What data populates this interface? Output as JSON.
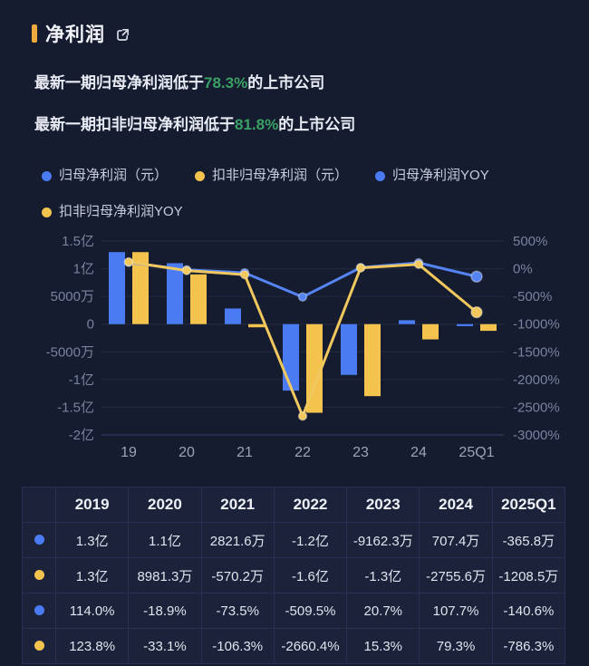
{
  "colors": {
    "background": "#151c2f",
    "blue": "#4b7bf2",
    "yellow": "#f3c34e",
    "line_blue": "#5584f2",
    "line_yellow": "#f0c85e",
    "green_highlight": "#3aa065",
    "title_marker": "#efa93e",
    "axis_text": "#78829e",
    "x_axis_text": "#9aa3ba",
    "gridline": "#222a46",
    "gridline_bottom": "#39426a"
  },
  "header": {
    "title": "净利润"
  },
  "summary": [
    {
      "prefix": "最新一期归母净利润低于",
      "highlight": "78.3%",
      "suffix": "的上市公司"
    },
    {
      "prefix": "最新一期扣非归母净利润低于",
      "highlight": "81.8%",
      "suffix": "的上市公司"
    }
  ],
  "legend": [
    {
      "label": "归母净利润（元）",
      "color": "#4b7bf2"
    },
    {
      "label": "扣非归母净利润（元）",
      "color": "#f3c34e"
    },
    {
      "label": "归母净利润YOY",
      "color": "#4b7bf2"
    },
    {
      "label": "扣非归母净利润YOY",
      "color": "#f3c34e"
    }
  ],
  "chart_data": {
    "type": "bar",
    "subtype": "combo-bar-line-dual-axis",
    "categories": [
      "19",
      "20",
      "21",
      "22",
      "23",
      "24",
      "25Q1"
    ],
    "left_axis": {
      "ticks": [
        "1.5亿",
        "1亿",
        "5000万",
        "0",
        "-5000万",
        "-1亿",
        "-1.5亿",
        "-2亿"
      ],
      "max": 150000000,
      "min": -200000000
    },
    "right_axis": {
      "ticks": [
        "500%",
        "0%",
        "-500%",
        "-1000%",
        "-1500%",
        "-2000%",
        "-2500%",
        "-3000%"
      ],
      "max": 500,
      "min": -3000
    },
    "grid": true,
    "legend_position": "top",
    "series": [
      {
        "name": "归母净利润（元）",
        "kind": "bar",
        "axis": "left",
        "color": "#4b7bf2",
        "values": [
          130000000,
          110000000,
          28216000,
          -120000000,
          -91623000,
          7074000,
          -3658000
        ]
      },
      {
        "name": "扣非归母净利润（元）",
        "kind": "bar",
        "axis": "left",
        "color": "#f3c34e",
        "values": [
          130000000,
          89813000,
          -5702000,
          -160000000,
          -130000000,
          -27556000,
          -12085000
        ]
      },
      {
        "name": "归母净利润YOY",
        "kind": "line",
        "axis": "right",
        "color": "#5584f2",
        "values": [
          114.0,
          -18.9,
          -73.5,
          -509.5,
          20.7,
          107.7,
          -140.6
        ]
      },
      {
        "name": "扣非归母净利润YOY",
        "kind": "line",
        "axis": "right",
        "color": "#f0c85e",
        "values": [
          123.8,
          -33.1,
          -106.3,
          -2660.4,
          15.3,
          79.3,
          -786.3
        ]
      }
    ]
  },
  "table": {
    "years": [
      "2019",
      "2020",
      "2021",
      "2022",
      "2023",
      "2024",
      "2025Q1"
    ],
    "rows": [
      {
        "dot": "#4b7bf2",
        "cells": [
          "1.3亿",
          "1.1亿",
          "2821.6万",
          "-1.2亿",
          "-9162.3万",
          "707.4万",
          "-365.8万"
        ]
      },
      {
        "dot": "#f3c34e",
        "cells": [
          "1.3亿",
          "8981.3万",
          "-570.2万",
          "-1.6亿",
          "-1.3亿",
          "-2755.6万",
          "-1208.5万"
        ]
      },
      {
        "dot": "#4b7bf2",
        "cells": [
          "114.0%",
          "-18.9%",
          "-73.5%",
          "-509.5%",
          "20.7%",
          "107.7%",
          "-140.6%"
        ]
      },
      {
        "dot": "#f3c34e",
        "cells": [
          "123.8%",
          "-33.1%",
          "-106.3%",
          "-2660.4%",
          "15.3%",
          "79.3%",
          "-786.3%"
        ]
      }
    ]
  }
}
